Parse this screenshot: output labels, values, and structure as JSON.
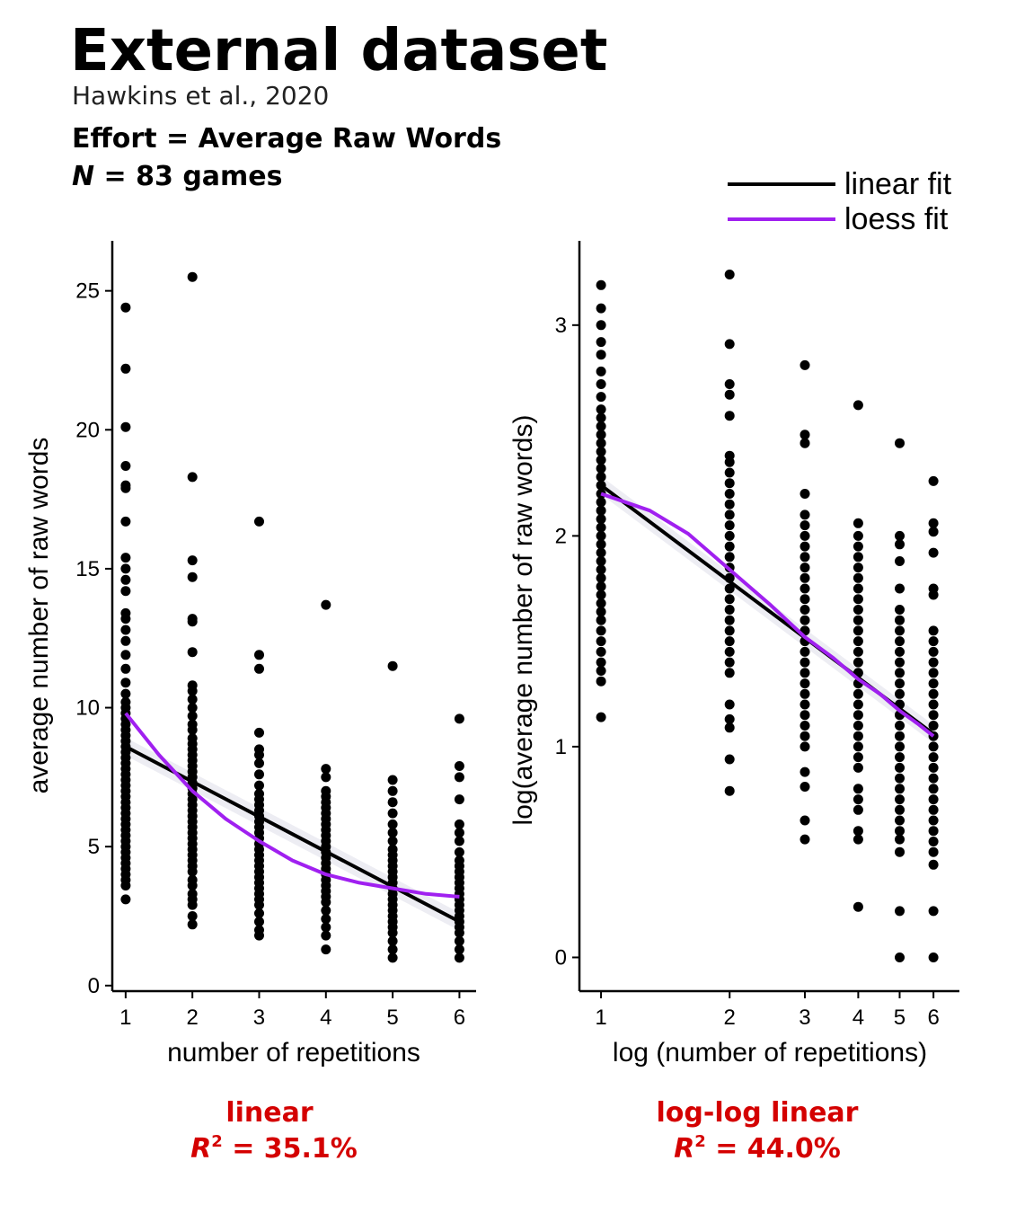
{
  "header": {
    "title": "External dataset",
    "subtitle": "Hawkins et al., 2020",
    "effort_line": "Effort = Average Raw Words",
    "n_symbol": "N",
    "n_text": " = 83 games"
  },
  "legend": {
    "items": [
      {
        "label": "linear fit",
        "color": "#000000"
      },
      {
        "label": "loess fit",
        "color": "#a020f0"
      }
    ]
  },
  "colors": {
    "points": "#000000",
    "linear": "#000000",
    "loess": "#a020f0",
    "annotation": "#d40000",
    "band": "#e6e6ee"
  },
  "chart_data": [
    {
      "type": "scatter",
      "xlabel": "number of repetitions",
      "ylabel": "average number of raw words",
      "x_scale": "linear",
      "xlim": [
        0.8,
        6.25
      ],
      "ylim": [
        -0.2,
        26.8
      ],
      "x_ticks": [
        1,
        2,
        3,
        4,
        5,
        6
      ],
      "y_ticks": [
        0,
        5,
        10,
        15,
        20,
        25
      ],
      "x_tick_labels": [
        "1",
        "2",
        "3",
        "4",
        "5",
        "6"
      ],
      "y_tick_labels": [
        "0",
        "5",
        "10",
        "15",
        "20",
        "25"
      ],
      "points": [
        {
          "x": 1,
          "y": [
            3.1,
            3.6,
            3.8,
            4.0,
            4.2,
            4.4,
            4.6,
            4.8,
            5.0,
            5.2,
            5.4,
            5.6,
            5.8,
            6.0,
            6.2,
            6.4,
            6.6,
            6.8,
            7.0,
            7.2,
            7.4,
            7.6,
            7.8,
            8.0,
            8.2,
            8.4,
            8.6,
            8.8,
            9.0,
            9.2,
            9.4,
            9.6,
            9.8,
            10.0,
            10.2,
            10.5,
            10.9,
            11.4,
            11.9,
            12.4,
            12.8,
            13.2,
            13.4,
            14.2,
            14.6,
            15.0,
            15.4,
            16.7,
            17.9,
            18.0,
            18.7,
            20.1,
            22.2,
            24.4
          ]
        },
        {
          "x": 2,
          "y": [
            2.2,
            2.5,
            2.9,
            3.1,
            3.3,
            3.6,
            3.8,
            4.1,
            4.3,
            4.5,
            4.7,
            4.9,
            5.1,
            5.3,
            5.5,
            5.7,
            5.9,
            6.1,
            6.3,
            6.5,
            6.7,
            6.9,
            7.1,
            7.3,
            7.5,
            7.7,
            7.9,
            8.1,
            8.3,
            8.5,
            8.7,
            8.9,
            9.2,
            9.4,
            9.7,
            10.0,
            10.3,
            10.6,
            10.8,
            12.0,
            13.1,
            13.2,
            14.7,
            15.3,
            18.3,
            25.5
          ]
        },
        {
          "x": 3,
          "y": [
            1.8,
            2.0,
            2.3,
            2.6,
            2.9,
            3.1,
            3.3,
            3.5,
            3.7,
            3.9,
            4.1,
            4.3,
            4.5,
            4.7,
            4.9,
            5.1,
            5.3,
            5.5,
            5.7,
            5.9,
            6.1,
            6.3,
            6.5,
            6.7,
            6.9,
            7.2,
            7.6,
            8.0,
            8.3,
            8.5,
            9.1,
            11.4,
            11.9,
            16.7
          ]
        },
        {
          "x": 4,
          "y": [
            1.3,
            1.8,
            2.1,
            2.4,
            2.7,
            3.0,
            3.2,
            3.4,
            3.6,
            3.8,
            4.0,
            4.2,
            4.4,
            4.6,
            4.8,
            5.0,
            5.2,
            5.4,
            5.6,
            5.8,
            6.0,
            6.2,
            6.4,
            6.6,
            6.8,
            7.0,
            7.5,
            7.8,
            13.7
          ]
        },
        {
          "x": 5,
          "y": [
            1.0,
            1.3,
            1.6,
            1.9,
            2.1,
            2.3,
            2.5,
            2.7,
            2.9,
            3.1,
            3.3,
            3.5,
            3.7,
            3.9,
            4.1,
            4.3,
            4.5,
            4.7,
            4.9,
            5.2,
            5.5,
            5.8,
            6.2,
            6.6,
            7.0,
            7.4,
            11.5
          ]
        },
        {
          "x": 6,
          "y": [
            1.0,
            1.3,
            1.6,
            1.9,
            2.1,
            2.3,
            2.5,
            2.7,
            2.9,
            3.1,
            3.3,
            3.5,
            3.7,
            3.9,
            4.1,
            4.3,
            4.5,
            4.8,
            5.2,
            5.5,
            5.8,
            6.7,
            7.5,
            7.9,
            9.6
          ]
        }
      ],
      "linear_fit": {
        "x": [
          1,
          6
        ],
        "y": [
          8.6,
          2.3
        ]
      },
      "loess_fit": {
        "x": [
          1,
          1.5,
          2,
          2.5,
          3,
          3.5,
          4,
          4.5,
          5,
          5.5,
          6
        ],
        "y": [
          9.8,
          8.3,
          7.0,
          6.0,
          5.2,
          4.5,
          4.0,
          3.7,
          3.5,
          3.3,
          3.2
        ]
      },
      "annotation": {
        "label": "linear",
        "r2_symbol": "R",
        "r2_exp": "2",
        "r2_value": " = 35.1%"
      }
    },
    {
      "type": "scatter",
      "xlabel": "log (number of repetitions)",
      "ylabel": "log(average number of raw words)",
      "x_scale": "log",
      "xlim": [
        0.89,
        6.9
      ],
      "ylim": [
        -0.16,
        3.4
      ],
      "x_ticks": [
        1,
        2,
        3,
        4,
        5,
        6
      ],
      "y_ticks": [
        0,
        1,
        2,
        3
      ],
      "x_tick_labels": [
        "1",
        "2",
        "3",
        "4",
        "5",
        "6"
      ],
      "y_tick_labels": [
        "0",
        "1",
        "2",
        "3"
      ],
      "points": [
        {
          "x": 1,
          "y": [
            1.14,
            1.31,
            1.36,
            1.4,
            1.45,
            1.5,
            1.55,
            1.6,
            1.64,
            1.68,
            1.72,
            1.76,
            1.8,
            1.84,
            1.88,
            1.92,
            1.96,
            2.0,
            2.04,
            2.08,
            2.12,
            2.16,
            2.2,
            2.24,
            2.28,
            2.32,
            2.36,
            2.4,
            2.44,
            2.48,
            2.52,
            2.56,
            2.6,
            2.66,
            2.72,
            2.78,
            2.86,
            2.92,
            3.0,
            3.08,
            3.19
          ]
        },
        {
          "x": 2,
          "y": [
            0.79,
            0.94,
            1.09,
            1.13,
            1.2,
            1.35,
            1.4,
            1.45,
            1.5,
            1.55,
            1.6,
            1.65,
            1.7,
            1.75,
            1.8,
            1.85,
            1.9,
            1.95,
            2.0,
            2.05,
            2.1,
            2.15,
            2.2,
            2.25,
            2.3,
            2.35,
            2.38,
            2.57,
            2.67,
            2.72,
            2.91,
            3.24
          ]
        },
        {
          "x": 3,
          "y": [
            0.56,
            0.65,
            0.81,
            0.88,
            1.0,
            1.05,
            1.1,
            1.15,
            1.2,
            1.25,
            1.3,
            1.35,
            1.4,
            1.45,
            1.5,
            1.55,
            1.6,
            1.65,
            1.7,
            1.75,
            1.8,
            1.85,
            1.9,
            1.95,
            2.0,
            2.05,
            2.1,
            2.2,
            2.44,
            2.48,
            2.81
          ]
        },
        {
          "x": 4,
          "y": [
            0.24,
            0.56,
            0.6,
            0.7,
            0.75,
            0.8,
            0.9,
            0.95,
            1.0,
            1.05,
            1.1,
            1.15,
            1.2,
            1.25,
            1.3,
            1.35,
            1.4,
            1.45,
            1.5,
            1.55,
            1.6,
            1.65,
            1.7,
            1.75,
            1.8,
            1.85,
            1.9,
            1.95,
            2.0,
            2.06,
            2.62
          ]
        },
        {
          "x": 5,
          "y": [
            0.0,
            0.22,
            0.5,
            0.56,
            0.6,
            0.65,
            0.7,
            0.75,
            0.8,
            0.85,
            0.9,
            0.95,
            1.0,
            1.05,
            1.1,
            1.15,
            1.2,
            1.25,
            1.3,
            1.35,
            1.4,
            1.45,
            1.5,
            1.55,
            1.6,
            1.65,
            1.75,
            1.88,
            1.96,
            2.0,
            2.44
          ]
        },
        {
          "x": 6,
          "y": [
            0.0,
            0.22,
            0.44,
            0.5,
            0.55,
            0.6,
            0.65,
            0.7,
            0.75,
            0.8,
            0.85,
            0.9,
            0.95,
            1.0,
            1.05,
            1.1,
            1.15,
            1.2,
            1.25,
            1.3,
            1.35,
            1.4,
            1.45,
            1.5,
            1.55,
            1.72,
            1.75,
            1.92,
            2.02,
            2.06,
            2.26
          ]
        }
      ],
      "linear_fit": {
        "x": [
          1,
          6
        ],
        "y": [
          2.24,
          1.06
        ]
      },
      "loess_fit": {
        "x": [
          1,
          1.3,
          1.6,
          2,
          2.5,
          3,
          3.5,
          4,
          4.5,
          5,
          5.5,
          6
        ],
        "y": [
          2.2,
          2.12,
          2.01,
          1.84,
          1.67,
          1.52,
          1.42,
          1.32,
          1.25,
          1.17,
          1.11,
          1.05
        ]
      },
      "annotation": {
        "label": "log-log linear",
        "r2_symbol": "R",
        "r2_exp": "2",
        "r2_value": " = 44.0%"
      }
    }
  ]
}
